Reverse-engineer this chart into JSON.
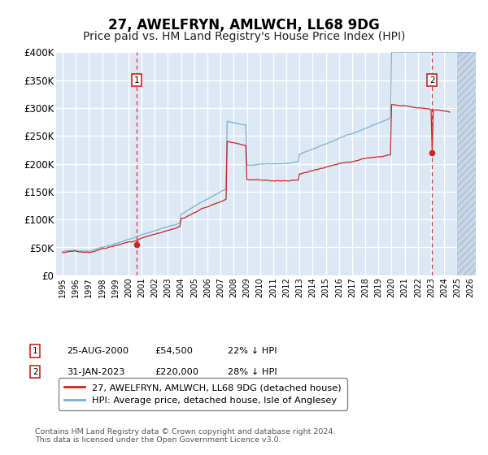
{
  "title": "27, AWELFRYN, AMLWCH, LL68 9DG",
  "subtitle": "Price paid vs. HM Land Registry's House Price Index (HPI)",
  "ylim": [
    0,
    400000
  ],
  "yticks": [
    0,
    50000,
    100000,
    150000,
    200000,
    250000,
    300000,
    350000,
    400000
  ],
  "ytick_labels": [
    "£0",
    "£50K",
    "£100K",
    "£150K",
    "£200K",
    "£250K",
    "£300K",
    "£350K",
    "£400K"
  ],
  "x_start_year": 1995,
  "x_end_year": 2026,
  "hpi_color": "#7ab0d4",
  "price_color": "#cc2222",
  "marker1_date": 2000.646,
  "marker1_price": 54500,
  "marker1_label": "25-AUG-2000",
  "marker1_note": "£54,500",
  "marker1_pct": "22% ↓ HPI",
  "marker2_date": 2023.083,
  "marker2_price": 220000,
  "marker2_label": "31-JAN-2023",
  "marker2_note": "£220,000",
  "marker2_pct": "28% ↓ HPI",
  "legend_line1": "27, AWELFRYN, AMLWCH, LL68 9DG (detached house)",
  "legend_line2": "HPI: Average price, detached house, Isle of Anglesey",
  "footnote": "Contains HM Land Registry data © Crown copyright and database right 2024.\nThis data is licensed under the Open Government Licence v3.0.",
  "bg_color": "#dce9f5",
  "title_fontsize": 12,
  "subtitle_fontsize": 10
}
